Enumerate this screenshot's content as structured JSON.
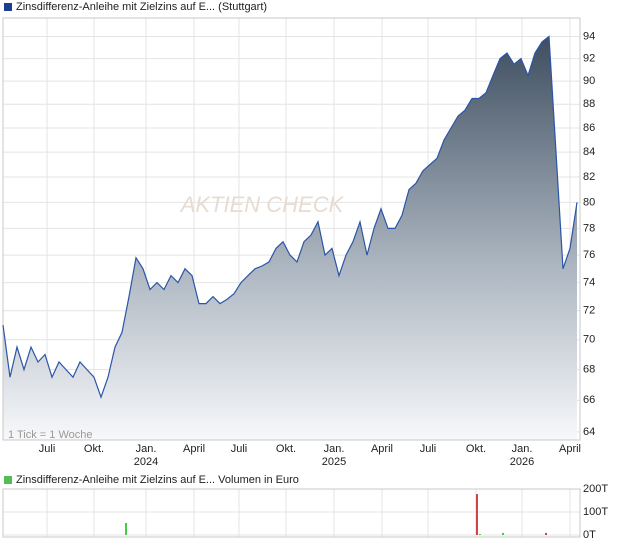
{
  "chart_data": [
    {
      "type": "area",
      "legend": "Zinsdifferenz-Anleihe mit Zielzins auf E... (Stuttgart)",
      "note": "1 Tick = 1 Woche",
      "watermark": "AKTIEN CHECK",
      "log_scale": true,
      "grid": true,
      "series": [
        {
          "color": "#2b55a6",
          "legend_color": "#1d3d8f",
          "values": [
            71,
            67.5,
            69.5,
            68,
            69.5,
            68.5,
            69,
            67.5,
            68.5,
            68,
            67.5,
            68.5,
            68,
            67.5,
            66.2,
            67.5,
            69.5,
            70.5,
            73,
            75.8,
            75,
            73.5,
            74,
            73.5,
            74.5,
            74,
            75,
            74.5,
            72.5,
            72.5,
            73,
            72.5,
            72.8,
            73.2,
            74,
            74.5,
            75,
            75.2,
            75.5,
            76.5,
            77,
            76,
            75.5,
            77,
            77.5,
            78.5,
            76,
            76.5,
            74.5,
            76,
            77,
            78.5,
            76,
            78,
            79.5,
            78,
            78,
            79,
            81,
            81.5,
            82.5,
            83,
            83.5,
            85,
            86,
            87,
            87.5,
            88.5,
            88.5,
            89,
            90.5,
            92,
            92.5,
            91.5,
            92,
            90.5,
            92.5,
            93.5,
            94,
            84,
            75,
            76.5,
            80
          ]
        }
      ],
      "xlim": [
        0,
        82
      ],
      "xticks": [
        {
          "value": 6.29,
          "label": "Juli"
        },
        {
          "value": 13,
          "label": "Okt."
        },
        {
          "value": 20.43,
          "label": "Jan."
        },
        {
          "value": 27.29,
          "label": "April"
        },
        {
          "value": 33.71,
          "label": "Juli"
        },
        {
          "value": 40.43,
          "label": "Okt."
        },
        {
          "value": 47.29,
          "label": "Jan."
        },
        {
          "value": 54.14,
          "label": "April"
        },
        {
          "value": 60.71,
          "label": "Juli"
        },
        {
          "value": 67.57,
          "label": "Okt."
        },
        {
          "value": 74.14,
          "label": "Jan."
        },
        {
          "value": 81,
          "label": "April"
        }
      ],
      "xtick_years": [
        {
          "value": 20.43,
          "label": "2024"
        },
        {
          "value": 47.29,
          "label": "2025"
        },
        {
          "value": 74.14,
          "label": "2026"
        }
      ],
      "ylim": [
        63.5,
        95.7
      ],
      "yticks": [
        64,
        66,
        68,
        70,
        72,
        74,
        76,
        78,
        80,
        82,
        84,
        86,
        88,
        90,
        92,
        94
      ]
    },
    {
      "type": "bar",
      "legend": "Zinsdifferenz-Anleihe mit Zielzins auf E... Volumen in Euro",
      "legend_color": "#55bb55",
      "x": [
        17.57,
        67.71,
        68.14,
        71.43,
        77.57
      ],
      "values": [
        52,
        178,
        4,
        9,
        9
      ],
      "colors": [
        "#44cc44",
        "#cc4444",
        "#44cc44",
        "#44cc44",
        "#cc4444"
      ],
      "xlim": [
        0,
        82
      ],
      "ylim": [
        0,
        200
      ],
      "yticks": [
        {
          "value": 0,
          "label": "0T"
        },
        {
          "value": 100,
          "label": "100T"
        },
        {
          "value": 200,
          "label": "200T"
        }
      ]
    }
  ]
}
